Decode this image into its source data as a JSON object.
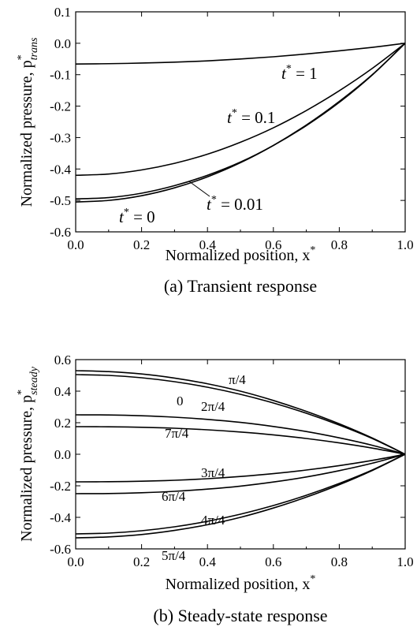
{
  "panel_a": {
    "caption": "(a) Transient response",
    "xlabel_main": "Normalized  position, x",
    "xlabel_sup": "*",
    "ylabel_main": "Normalized pressure, p",
    "ylabel_sup": "*",
    "ylabel_sub": "trans",
    "labels": [
      {
        "id": "t1",
        "main": "t",
        "sup": "*",
        "rest": " = 1"
      },
      {
        "id": "t01",
        "main": "t",
        "sup": "*",
        "rest": " = 0.1"
      },
      {
        "id": "t001",
        "main": "t",
        "sup": "*",
        "rest": " = 0.01"
      },
      {
        "id": "t0",
        "main": "t",
        "sup": "*",
        "rest": " = 0"
      }
    ]
  },
  "panel_b": {
    "caption": "(b) Steady-state response",
    "xlabel_main": "Normalized  position, x",
    "xlabel_sup": "*",
    "ylabel_main": "Normalized pressure, p",
    "ylabel_sup": "*",
    "ylabel_sub": "steady",
    "labels": [
      "π/4",
      "0",
      "2π/4",
      "7π/4",
      "3π/4",
      "6π/4",
      "4π/4",
      "5π/4"
    ]
  },
  "chart_data": [
    {
      "type": "line",
      "title": "(a) Transient response",
      "xlabel": "Normalized position, x*",
      "ylabel": "Normalized pressure, p*trans",
      "xlim": [
        0,
        1
      ],
      "ylim": [
        -0.6,
        0.1
      ],
      "xticks": [
        "0.0",
        "0.2",
        "0.4",
        "0.6",
        "0.8",
        "1.0"
      ],
      "yticks": [
        "0.1",
        "0.0",
        "-0.1",
        "-0.2",
        "-0.3",
        "-0.4",
        "-0.5",
        "-0.6"
      ],
      "grid": false,
      "x": [
        0,
        0.1,
        0.2,
        0.3,
        0.4,
        0.5,
        0.6,
        0.7,
        0.8,
        0.9,
        1.0
      ],
      "series": [
        {
          "name": "t* = 1",
          "values": [
            -0.066,
            -0.065,
            -0.063,
            -0.06,
            -0.056,
            -0.05,
            -0.043,
            -0.034,
            -0.024,
            -0.013,
            0.0
          ]
        },
        {
          "name": "t* = 0.1",
          "values": [
            -0.42,
            -0.416,
            -0.403,
            -0.382,
            -0.353,
            -0.315,
            -0.269,
            -0.214,
            -0.151,
            -0.08,
            0.0
          ]
        },
        {
          "name": "t* = 0.01",
          "values": [
            -0.495,
            -0.491,
            -0.477,
            -0.453,
            -0.42,
            -0.378,
            -0.325,
            -0.262,
            -0.188,
            -0.101,
            0.0
          ]
        },
        {
          "name": "t* = 0",
          "values": [
            -0.505,
            -0.5,
            -0.485,
            -0.46,
            -0.425,
            -0.38,
            -0.325,
            -0.26,
            -0.185,
            -0.1,
            0.0
          ]
        }
      ]
    },
    {
      "type": "line",
      "title": "(b) Steady-state response",
      "xlabel": "Normalized position, x*",
      "ylabel": "Normalized pressure, p*steady",
      "xlim": [
        0,
        1
      ],
      "ylim": [
        -0.6,
        0.6
      ],
      "xticks": [
        "0.0",
        "0.2",
        "0.4",
        "0.6",
        "0.8",
        "1.0"
      ],
      "yticks": [
        "0.6",
        "0.4",
        "0.2",
        "0.0",
        "-0.2",
        "-0.4",
        "-0.6"
      ],
      "grid": false,
      "x": [
        0,
        0.1,
        0.2,
        0.3,
        0.4,
        0.5,
        0.6,
        0.7,
        0.8,
        0.9,
        1.0
      ],
      "series": [
        {
          "name": "π/4",
          "values": [
            0.53,
            0.524,
            0.509,
            0.483,
            0.447,
            0.4,
            0.341,
            0.272,
            0.193,
            0.103,
            0.0
          ]
        },
        {
          "name": "0",
          "values": [
            0.505,
            0.5,
            0.485,
            0.46,
            0.425,
            0.38,
            0.325,
            0.26,
            0.185,
            0.1,
            0.0
          ]
        },
        {
          "name": "2π/4",
          "values": [
            0.25,
            0.249,
            0.244,
            0.235,
            0.221,
            0.202,
            0.176,
            0.144,
            0.104,
            0.057,
            0.0
          ]
        },
        {
          "name": "7π/4",
          "values": [
            0.175,
            0.174,
            0.171,
            0.165,
            0.155,
            0.141,
            0.123,
            0.1,
            0.072,
            0.039,
            0.0
          ]
        },
        {
          "name": "3π/4",
          "values": [
            -0.175,
            -0.174,
            -0.171,
            -0.165,
            -0.155,
            -0.141,
            -0.123,
            -0.1,
            -0.072,
            -0.039,
            0.0
          ]
        },
        {
          "name": "6π/4",
          "values": [
            -0.25,
            -0.249,
            -0.244,
            -0.235,
            -0.221,
            -0.202,
            -0.176,
            -0.144,
            -0.104,
            -0.057,
            0.0
          ]
        },
        {
          "name": "4π/4",
          "values": [
            -0.505,
            -0.5,
            -0.485,
            -0.46,
            -0.425,
            -0.38,
            -0.325,
            -0.26,
            -0.185,
            -0.1,
            0.0
          ]
        },
        {
          "name": "5π/4",
          "values": [
            -0.53,
            -0.524,
            -0.509,
            -0.483,
            -0.447,
            -0.4,
            -0.341,
            -0.272,
            -0.193,
            -0.103,
            0.0
          ]
        }
      ]
    }
  ]
}
